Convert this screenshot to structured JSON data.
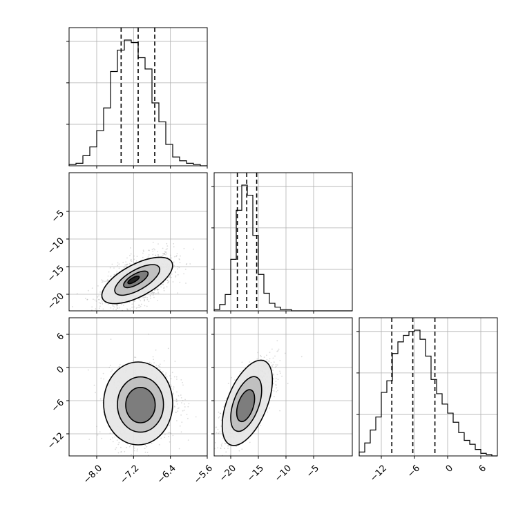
{
  "chart_data": {
    "type": "corner",
    "parameters": [
      {
        "id": "p1",
        "range": [
          -8.6,
          -5.6
        ],
        "ticks": [
          -8.0,
          -7.2,
          -6.4,
          -5.6
        ],
        "tick_labels": [
          "−8.0",
          "−7.2",
          "−6.4",
          "−5.6"
        ],
        "quantiles": [
          -7.47,
          -7.1,
          -6.74
        ]
      },
      {
        "id": "p2",
        "range": [
          -23,
          2
        ],
        "ticks": [
          -20,
          -15,
          -10,
          -5
        ],
        "tick_labels": [
          "−20",
          "−15",
          "−10",
          "−5"
        ],
        "row_ticks": [
          -20,
          -15,
          -10,
          -5
        ],
        "quantiles": [
          -18.8,
          -17.1,
          -15.3
        ]
      },
      {
        "id": "p3",
        "range": [
          -16,
          9
        ],
        "ticks": [
          -12,
          -6,
          0,
          6
        ],
        "tick_labels": [
          "−12",
          "−6",
          "0",
          "6"
        ],
        "row_ticks": [
          -12,
          -6,
          0,
          6
        ],
        "quantiles": [
          -10.1,
          -6.3,
          -2.3
        ]
      }
    ],
    "histograms": {
      "p1": {
        "bin_edges": [
          -8.6,
          -8.45,
          -8.3,
          -8.15,
          -8.0,
          -7.85,
          -7.7,
          -7.55,
          -7.4,
          -7.25,
          -7.1,
          -6.95,
          -6.8,
          -6.65,
          -6.5,
          -6.35,
          -6.2,
          -6.05,
          -5.9,
          -5.75,
          -5.6
        ],
        "counts": [
          1,
          2,
          8,
          15,
          28,
          46,
          75,
          92,
          100,
          98,
          86,
          77,
          50,
          35,
          17,
          7,
          4,
          2,
          1,
          0
        ]
      },
      "p2": {
        "bin_edges": [
          -23,
          -22,
          -21,
          -20,
          -19,
          -18,
          -17,
          -16,
          -15,
          -14,
          -13,
          -12,
          -11,
          -10,
          -9,
          -8,
          -7,
          -6,
          -5,
          -4,
          -3,
          -2,
          -1,
          0,
          1,
          2
        ],
        "counts": [
          1,
          5,
          13,
          41,
          80,
          100,
          92,
          60,
          29,
          14,
          6,
          3,
          1,
          1,
          0,
          0,
          0,
          0,
          0,
          0,
          0,
          0,
          0,
          0,
          0
        ]
      },
      "p3": {
        "bin_edges": [
          -16,
          -15,
          -14,
          -13,
          -12,
          -11,
          -10,
          -9,
          -8,
          -7,
          -6,
          -5,
          -4,
          -3,
          -2,
          -1,
          0,
          1,
          2,
          3,
          4,
          5,
          6,
          7,
          8,
          9
        ],
        "counts": [
          3,
          10,
          20,
          30,
          49,
          58,
          79,
          88,
          93,
          96,
          97,
          90,
          77,
          59,
          48,
          40,
          33,
          26,
          18,
          12,
          9,
          5,
          2,
          1,
          0
        ]
      }
    },
    "scatter_2d": [
      {
        "x": "p1",
        "y": "p2",
        "x_center": -7.1,
        "y_center": -17.6,
        "x_sd": 0.38,
        "y_sd": 2.4,
        "corr": 0.55,
        "contour_levels": [
          {
            "cx": -7.12,
            "cy": -17.5,
            "rx": 0.85,
            "ry": 2.9,
            "rot": -28
          },
          {
            "cx": -7.12,
            "cy": -17.4,
            "rx": 0.55,
            "ry": 1.8,
            "rot": -30
          },
          {
            "cx": -7.15,
            "cy": -17.3,
            "rx": 0.3,
            "ry": 0.95,
            "rot": -30
          },
          {
            "cx": -7.2,
            "cy": -17.4,
            "rx": 0.14,
            "ry": 0.4,
            "rot": -30
          }
        ]
      },
      {
        "x": "p1",
        "y": "p3",
        "x_center": -7.0,
        "y_center": -6.6,
        "x_sd": 0.35,
        "y_sd": 3.5,
        "corr": 0.1,
        "contour_levels": [
          {
            "cx": -7.1,
            "cy": -6.5,
            "rx": 0.75,
            "ry": 7.5,
            "rot": 0
          },
          {
            "cx": -7.05,
            "cy": -6.7,
            "rx": 0.5,
            "ry": 5.0,
            "rot": 0
          },
          {
            "cx": -7.05,
            "cy": -6.8,
            "rx": 0.32,
            "ry": 3.2,
            "rot": 0
          }
        ]
      },
      {
        "x": "p2",
        "y": "p3",
        "x_center": -17.0,
        "y_center": -6.5,
        "x_sd": 2.3,
        "y_sd": 3.6,
        "corr": 0.7,
        "contour_levels": [
          {
            "cx": -17.0,
            "cy": -6.4,
            "rx": 3.6,
            "ry": 8.2,
            "rot": 22
          },
          {
            "cx": -17.2,
            "cy": -6.6,
            "rx": 2.3,
            "ry": 5.2,
            "rot": 20
          },
          {
            "cx": -17.3,
            "cy": -6.9,
            "rx": 1.4,
            "ry": 3.0,
            "rot": 18
          }
        ]
      }
    ]
  }
}
